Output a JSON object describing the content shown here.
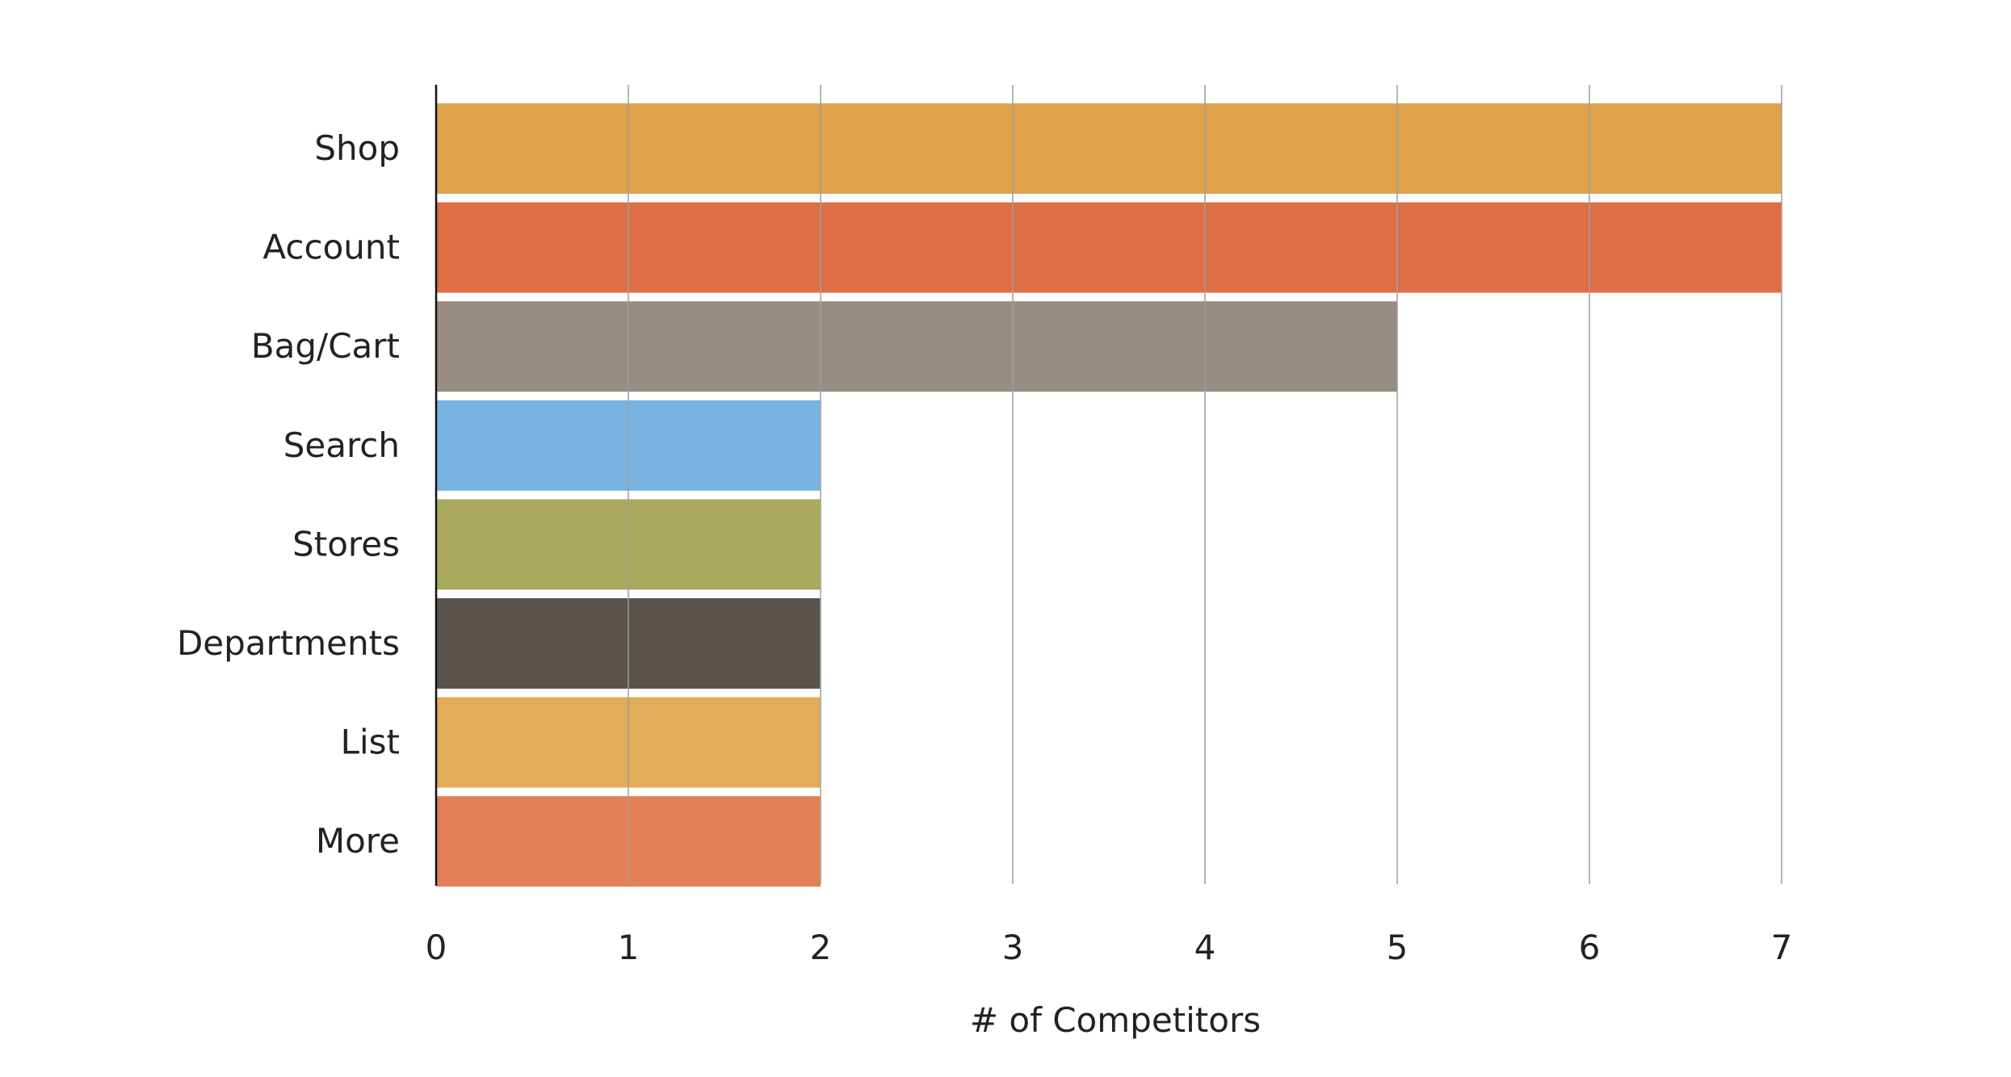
{
  "chart_data": {
    "type": "bar",
    "orientation": "horizontal",
    "categories": [
      "Shop",
      "Account",
      "Bag/Cart",
      "Search",
      "Stores",
      "Departments",
      "List",
      "More"
    ],
    "values": [
      7,
      7,
      5,
      2,
      2,
      2,
      2,
      2
    ],
    "colors": [
      "#DDA24A",
      "#DF6E46",
      "#978D81",
      "#78B3E0",
      "#AAAA5E",
      "#5A544D",
      "#E2AD58",
      "#E37F55"
    ],
    "title": "",
    "xlabel": "# of Competitors",
    "ylabel": "",
    "xlim": [
      0,
      7
    ],
    "xticks": [
      0,
      1,
      2,
      3,
      4,
      5,
      6,
      7
    ],
    "grid": true,
    "legend": "none"
  }
}
